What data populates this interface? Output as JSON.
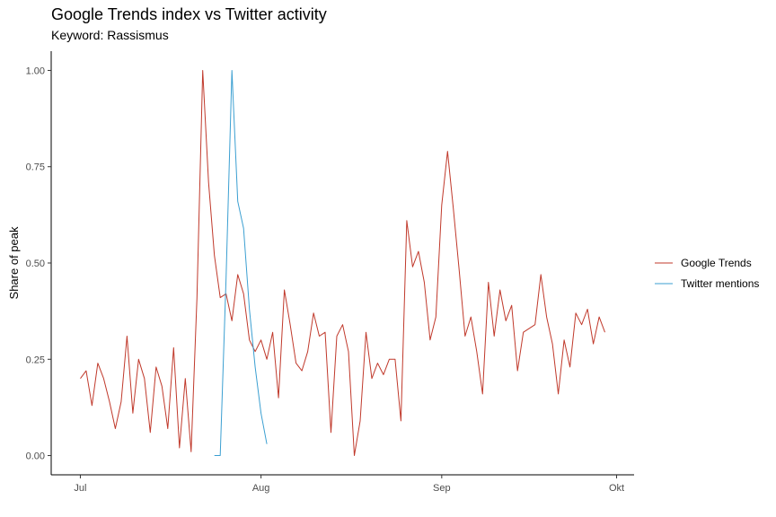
{
  "chart_data": {
    "type": "line",
    "title": "Google Trends index vs Twitter activity",
    "subtitle": "Keyword: Rassismus",
    "xlabel": "",
    "ylabel": "Share of peak",
    "x_ticks": [
      "Jul",
      "Aug",
      "Sep",
      "Okt"
    ],
    "x_tick_dates": [
      "2020-07-01",
      "2020-08-01",
      "2020-09-01",
      "2020-10-01"
    ],
    "xlim": [
      "2020-06-26",
      "2020-10-04"
    ],
    "y_ticks": [
      "0.00",
      "0.25",
      "0.50",
      "0.75",
      "1.00"
    ],
    "ylim": [
      -0.05,
      1.05
    ],
    "grid": false,
    "legend_position": "right",
    "series": [
      {
        "name": "Google Trends",
        "color": "#c0392b",
        "x": [
          "2020-07-01",
          "2020-07-02",
          "2020-07-03",
          "2020-07-04",
          "2020-07-05",
          "2020-07-06",
          "2020-07-07",
          "2020-07-08",
          "2020-07-09",
          "2020-07-10",
          "2020-07-11",
          "2020-07-12",
          "2020-07-13",
          "2020-07-14",
          "2020-07-15",
          "2020-07-16",
          "2020-07-17",
          "2020-07-18",
          "2020-07-19",
          "2020-07-20",
          "2020-07-21",
          "2020-07-22",
          "2020-07-23",
          "2020-07-24",
          "2020-07-25",
          "2020-07-26",
          "2020-07-27",
          "2020-07-28",
          "2020-07-29",
          "2020-07-30",
          "2020-07-31",
          "2020-08-01",
          "2020-08-02",
          "2020-08-03",
          "2020-08-04",
          "2020-08-05",
          "2020-08-06",
          "2020-08-07",
          "2020-08-08",
          "2020-08-09",
          "2020-08-10",
          "2020-08-11",
          "2020-08-12",
          "2020-08-13",
          "2020-08-14",
          "2020-08-15",
          "2020-08-16",
          "2020-08-17",
          "2020-08-18",
          "2020-08-19",
          "2020-08-20",
          "2020-08-21",
          "2020-08-22",
          "2020-08-23",
          "2020-08-24",
          "2020-08-25",
          "2020-08-26",
          "2020-08-27",
          "2020-08-28",
          "2020-08-29",
          "2020-08-30",
          "2020-08-31",
          "2020-09-01",
          "2020-09-02",
          "2020-09-03",
          "2020-09-04",
          "2020-09-05",
          "2020-09-06",
          "2020-09-07",
          "2020-09-08",
          "2020-09-09",
          "2020-09-10",
          "2020-09-11",
          "2020-09-12",
          "2020-09-13",
          "2020-09-14",
          "2020-09-15",
          "2020-09-16",
          "2020-09-17",
          "2020-09-18",
          "2020-09-19",
          "2020-09-20",
          "2020-09-21",
          "2020-09-22",
          "2020-09-23",
          "2020-09-24",
          "2020-09-25",
          "2020-09-26",
          "2020-09-27",
          "2020-09-28",
          "2020-09-29"
        ],
        "values": [
          0.2,
          0.22,
          0.13,
          0.24,
          0.2,
          0.14,
          0.07,
          0.14,
          0.31,
          0.11,
          0.25,
          0.2,
          0.06,
          0.23,
          0.18,
          0.07,
          0.28,
          0.02,
          0.2,
          0.01,
          0.41,
          1.0,
          0.71,
          0.52,
          0.41,
          0.42,
          0.35,
          0.47,
          0.42,
          0.3,
          0.27,
          0.3,
          0.25,
          0.32,
          0.15,
          0.43,
          0.34,
          0.24,
          0.22,
          0.27,
          0.37,
          0.31,
          0.32,
          0.06,
          0.31,
          0.34,
          0.27,
          0.0,
          0.09,
          0.32,
          0.2,
          0.24,
          0.21,
          0.25,
          0.25,
          0.09,
          0.61,
          0.49,
          0.53,
          0.45,
          0.3,
          0.36,
          0.65,
          0.79,
          0.64,
          0.48,
          0.31,
          0.36,
          0.27,
          0.16,
          0.45,
          0.31,
          0.43,
          0.35,
          0.39,
          0.22,
          0.32,
          0.33,
          0.34,
          0.47,
          0.36,
          0.29,
          0.16,
          0.3,
          0.23,
          0.37,
          0.34,
          0.38,
          0.29,
          0.36,
          0.32
        ]
      },
      {
        "name": "Twitter mentions",
        "color": "#3b9fd1",
        "x": [
          "2020-07-24",
          "2020-07-25",
          "2020-07-26",
          "2020-07-27",
          "2020-07-28",
          "2020-07-29",
          "2020-07-30",
          "2020-07-31",
          "2020-08-01",
          "2020-08-02"
        ],
        "values": [
          0.0,
          0.0,
          0.46,
          1.0,
          0.66,
          0.59,
          0.38,
          0.23,
          0.11,
          0.03
        ]
      }
    ]
  }
}
